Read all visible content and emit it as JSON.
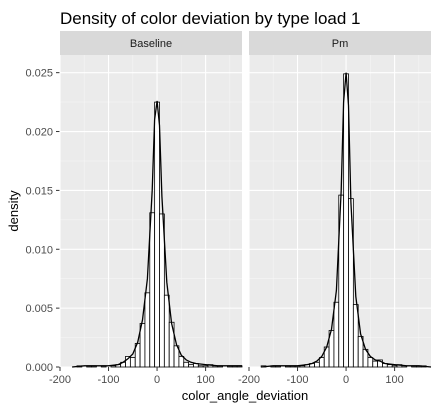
{
  "chart_data": {
    "type": "bar",
    "title": "Density of color deviation by type load 1",
    "xlabel": "color_angle_deviation",
    "ylabel": "density",
    "xlim": [
      -200,
      175
    ],
    "ylim": [
      0,
      0.0265
    ],
    "x_ticks": [
      -200,
      -100,
      0,
      100
    ],
    "y_ticks": [
      0.0,
      0.005,
      0.01,
      0.015,
      0.02,
      0.025
    ],
    "y_tick_labels": [
      "0.000",
      "0.005",
      "0.010",
      "0.015",
      "0.020",
      "0.025"
    ],
    "grid": true,
    "bin_width": 10,
    "panels": [
      {
        "name": "Baseline",
        "histogram": {
          "bin_centers": [
            -170,
            -160,
            -150,
            -140,
            -130,
            -120,
            -110,
            -100,
            -90,
            -80,
            -70,
            -60,
            -50,
            -40,
            -30,
            -20,
            -10,
            0,
            10,
            20,
            30,
            40,
            50,
            60,
            70,
            80,
            90,
            100,
            110,
            120,
            130,
            140,
            150,
            160,
            170
          ],
          "values": [
            0.0,
            0.0001,
            0.0,
            0.0001,
            0.0001,
            0.0,
            0.0001,
            0.0,
            0.0001,
            0.0002,
            0.0004,
            0.0009,
            0.0008,
            0.002,
            0.0037,
            0.0063,
            0.0131,
            0.0225,
            0.013,
            0.0061,
            0.0038,
            0.0018,
            0.0009,
            0.0004,
            0.0002,
            0.0003,
            0.0001,
            0.0001,
            0.0002,
            0.0001,
            0.0001,
            0.0,
            0.0001,
            0.0001,
            0.0001
          ]
        },
        "density_curve": {
          "x": [
            -175,
            -150,
            -125,
            -100,
            -80,
            -70,
            -60,
            -50,
            -40,
            -30,
            -20,
            -10,
            -5,
            0,
            5,
            10,
            20,
            30,
            40,
            50,
            60,
            70,
            80,
            100,
            125,
            150,
            175
          ],
          "y": [
            0.0,
            0.0001,
            0.0001,
            0.0001,
            0.0002,
            0.0004,
            0.0007,
            0.0011,
            0.0021,
            0.004,
            0.0075,
            0.015,
            0.021,
            0.0226,
            0.0205,
            0.0145,
            0.0072,
            0.0037,
            0.0019,
            0.001,
            0.0006,
            0.0004,
            0.0003,
            0.0002,
            0.0001,
            0.0001,
            0.0001
          ]
        }
      },
      {
        "name": "Pm",
        "histogram": {
          "bin_centers": [
            -170,
            -160,
            -150,
            -140,
            -130,
            -120,
            -110,
            -100,
            -90,
            -80,
            -70,
            -60,
            -50,
            -40,
            -30,
            -20,
            -10,
            0,
            10,
            20,
            30,
            40,
            50,
            60,
            70,
            80,
            90,
            100,
            110,
            120,
            130,
            140,
            150,
            160,
            170
          ],
          "values": [
            0.0001,
            0.0,
            0.0001,
            0.0001,
            0.0,
            0.0001,
            0.0001,
            0.0001,
            0.0001,
            0.0002,
            0.0003,
            0.0004,
            0.0008,
            0.0017,
            0.0031,
            0.0055,
            0.0146,
            0.0249,
            0.0143,
            0.0053,
            0.0026,
            0.0015,
            0.0008,
            0.0005,
            0.0006,
            0.0003,
            0.0002,
            0.0001,
            0.0002,
            0.0001,
            0.0,
            0.0001,
            0.0001,
            0.0001,
            0.0
          ]
        },
        "density_curve": {
          "x": [
            -175,
            -150,
            -125,
            -100,
            -80,
            -70,
            -60,
            -50,
            -40,
            -30,
            -20,
            -10,
            -5,
            0,
            5,
            10,
            20,
            30,
            40,
            50,
            60,
            70,
            80,
            100,
            125,
            150,
            175
          ],
          "y": [
            0.0,
            0.0001,
            0.0001,
            0.0001,
            0.0002,
            0.0003,
            0.0005,
            0.0009,
            0.0017,
            0.0032,
            0.0065,
            0.015,
            0.0225,
            0.025,
            0.0222,
            0.014,
            0.006,
            0.0028,
            0.0015,
            0.0009,
            0.0006,
            0.0005,
            0.0003,
            0.0002,
            0.0001,
            0.0001,
            0.0
          ]
        }
      }
    ]
  },
  "colors": {
    "panel_background": "#ebebeb",
    "grid_major": "#ffffff",
    "grid_minor": "#f5f5f5",
    "strip_background": "#d9d9d9",
    "bar_fill": "#ffffff",
    "bar_outline": "#000000",
    "density_line": "#000000",
    "text": "#000000",
    "tick_text": "#4d4d4d"
  }
}
